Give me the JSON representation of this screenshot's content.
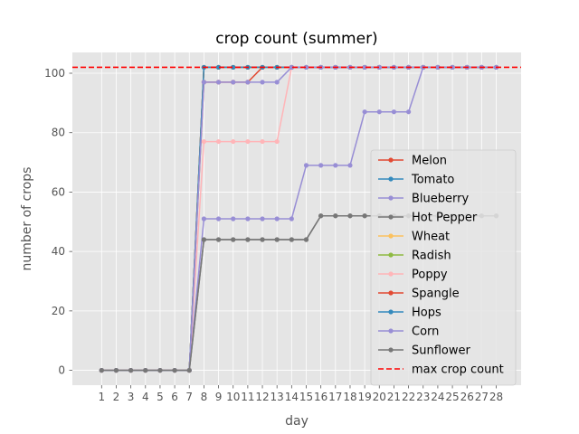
{
  "chart_data": {
    "type": "line",
    "title": "crop count (summer)",
    "xlabel": "day",
    "ylabel": "number of crops",
    "x": [
      1,
      2,
      3,
      4,
      5,
      6,
      7,
      8,
      9,
      10,
      11,
      12,
      13,
      14,
      15,
      16,
      17,
      18,
      19,
      20,
      21,
      22,
      23,
      24,
      25,
      26,
      27,
      28
    ],
    "ylim": [
      -5,
      107
    ],
    "yticks": [
      0,
      20,
      40,
      60,
      80,
      100
    ],
    "grid": true,
    "legend_position": "lower right",
    "series": [
      {
        "name": "Melon",
        "color": "#E24A33",
        "values": [
          0,
          0,
          0,
          0,
          0,
          0,
          0,
          97,
          97,
          97,
          97,
          102,
          102,
          102,
          102,
          102,
          102,
          102,
          102,
          102,
          102,
          102,
          102,
          102,
          102,
          102,
          102,
          102
        ]
      },
      {
        "name": "Tomato",
        "color": "#348ABD",
        "values": [
          0,
          0,
          0,
          0,
          0,
          0,
          0,
          102,
          102,
          102,
          102,
          102,
          102,
          102,
          102,
          102,
          102,
          102,
          102,
          102,
          102,
          102,
          102,
          102,
          102,
          102,
          102,
          102
        ]
      },
      {
        "name": "Blueberry",
        "color": "#988ED5",
        "values": [
          0,
          0,
          0,
          0,
          0,
          0,
          0,
          51,
          51,
          51,
          51,
          51,
          51,
          51,
          69,
          69,
          69,
          69,
          87,
          87,
          87,
          87,
          102,
          102,
          102,
          102,
          102,
          102
        ]
      },
      {
        "name": "Hot Pepper",
        "color": "#777777",
        "values": [
          0,
          0,
          0,
          0,
          0,
          0,
          0,
          44,
          44,
          44,
          44,
          44,
          44,
          44,
          44,
          52,
          52,
          52,
          52,
          52,
          52,
          52,
          52,
          52,
          52,
          52,
          52,
          52
        ]
      },
      {
        "name": "Wheat",
        "color": "#FBC15E",
        "values": [
          0,
          0,
          0,
          0,
          0,
          0,
          0,
          102,
          102,
          102,
          102,
          102,
          102,
          102,
          102,
          102,
          102,
          102,
          102,
          102,
          102,
          102,
          102,
          102,
          102,
          102,
          102,
          102
        ]
      },
      {
        "name": "Radish",
        "color": "#8EBA42",
        "values": [
          0,
          0,
          0,
          0,
          0,
          0,
          0,
          102,
          102,
          102,
          102,
          102,
          102,
          102,
          102,
          102,
          102,
          102,
          102,
          102,
          102,
          102,
          102,
          102,
          102,
          102,
          102,
          102
        ]
      },
      {
        "name": "Poppy",
        "color": "#FFB5B8",
        "values": [
          0,
          0,
          0,
          0,
          0,
          0,
          0,
          77,
          77,
          77,
          77,
          77,
          77,
          102,
          102,
          102,
          102,
          102,
          102,
          102,
          102,
          102,
          102,
          102,
          102,
          102,
          102,
          102
        ]
      },
      {
        "name": "Spangle",
        "color": "#E24A33",
        "values": [
          0,
          0,
          0,
          0,
          0,
          0,
          0,
          102,
          102,
          102,
          102,
          102,
          102,
          102,
          102,
          102,
          102,
          102,
          102,
          102,
          102,
          102,
          102,
          102,
          102,
          102,
          102,
          102
        ]
      },
      {
        "name": "Hops",
        "color": "#348ABD",
        "values": [
          0,
          0,
          0,
          0,
          0,
          0,
          0,
          102,
          102,
          102,
          102,
          102,
          102,
          102,
          102,
          102,
          102,
          102,
          102,
          102,
          102,
          102,
          102,
          102,
          102,
          102,
          102,
          102
        ]
      },
      {
        "name": "Corn",
        "color": "#988ED5",
        "values": [
          0,
          0,
          0,
          0,
          0,
          0,
          0,
          97,
          97,
          97,
          97,
          97,
          97,
          102,
          102,
          102,
          102,
          102,
          102,
          102,
          102,
          102,
          102,
          102,
          102,
          102,
          102,
          102
        ]
      },
      {
        "name": "Sunflower",
        "color": "#777777",
        "values": [
          0,
          0,
          0,
          0,
          0,
          0,
          0,
          44,
          44,
          44,
          44,
          44,
          44,
          44,
          44,
          52,
          52,
          52,
          52,
          52,
          52,
          52,
          52,
          52,
          52,
          52,
          52,
          52
        ]
      }
    ],
    "reference_line": {
      "name": "max crop count",
      "value": 102,
      "color": "#ff0000",
      "style": "dashed"
    }
  }
}
